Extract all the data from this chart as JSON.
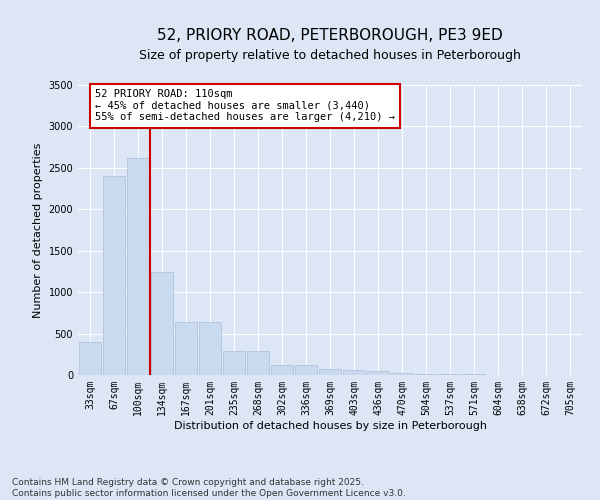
{
  "title": "52, PRIORY ROAD, PETERBOROUGH, PE3 9ED",
  "subtitle": "Size of property relative to detached houses in Peterborough",
  "xlabel": "Distribution of detached houses by size in Peterborough",
  "ylabel": "Number of detached properties",
  "categories": [
    "33sqm",
    "67sqm",
    "100sqm",
    "134sqm",
    "167sqm",
    "201sqm",
    "235sqm",
    "268sqm",
    "302sqm",
    "336sqm",
    "369sqm",
    "403sqm",
    "436sqm",
    "470sqm",
    "504sqm",
    "537sqm",
    "571sqm",
    "604sqm",
    "638sqm",
    "672sqm",
    "705sqm"
  ],
  "values": [
    400,
    2400,
    2620,
    1240,
    640,
    640,
    290,
    290,
    120,
    120,
    75,
    60,
    50,
    30,
    15,
    10,
    8,
    5,
    3,
    2,
    2
  ],
  "bar_color": "#c9d9ee",
  "bar_edge_color": "#aabdd8",
  "vline_x": 2.5,
  "vline_color": "#cc0000",
  "annotation_text": "52 PRIORY ROAD: 110sqm\n← 45% of detached houses are smaller (3,440)\n55% of semi-detached houses are larger (4,210) →",
  "annotation_box_facecolor": "#ffffff",
  "annotation_box_edgecolor": "#cc0000",
  "ylim": [
    0,
    3500
  ],
  "yticks": [
    0,
    500,
    1000,
    1500,
    2000,
    2500,
    3000,
    3500
  ],
  "background_color": "#dce6f5",
  "plot_bg_color": "#dce6f5",
  "footer_text": "Contains HM Land Registry data © Crown copyright and database right 2025.\nContains public sector information licensed under the Open Government Licence v3.0.",
  "title_fontsize": 11,
  "subtitle_fontsize": 9,
  "xlabel_fontsize": 8,
  "ylabel_fontsize": 8,
  "tick_fontsize": 7,
  "annotation_fontsize": 7.5,
  "footer_fontsize": 6.5
}
